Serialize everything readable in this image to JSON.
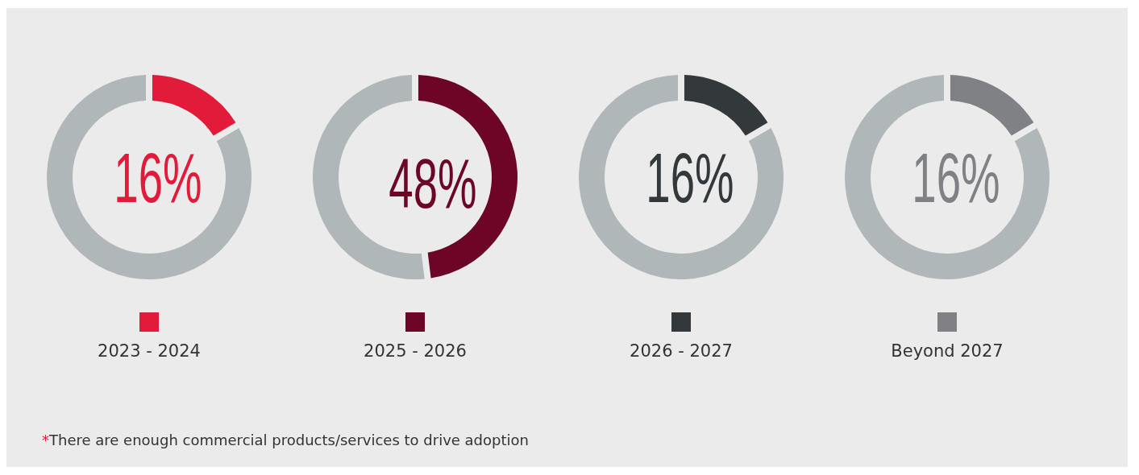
{
  "chart_data": [
    {
      "type": "donut",
      "categories": [
        "2023 - 2024",
        null
      ],
      "values": [
        16,
        84
      ],
      "colors": [
        "#e31b3a",
        "#b0b7b9"
      ],
      "value_labels": [
        "16%",
        null
      ],
      "legend": "bottom",
      "annotations": [
        "*There are enough commercial products/services to drive adoption"
      ]
    },
    {
      "type": "donut",
      "categories": [
        "2025 - 2026",
        null
      ],
      "values": [
        48,
        52
      ],
      "colors": [
        "#6d0626",
        "#b0b7b9"
      ],
      "value_labels": [
        "48%",
        null
      ],
      "legend": "bottom"
    },
    {
      "type": "donut",
      "categories": [
        "2026 - 2027",
        null
      ],
      "values": [
        16,
        84
      ],
      "colors": [
        "#33383a",
        "#b0b7b9"
      ],
      "value_labels": [
        "16%",
        null
      ],
      "legend": "bottom"
    },
    {
      "type": "donut",
      "categories": [
        "Beyond 2027",
        null
      ],
      "values": [
        16,
        84
      ],
      "colors": [
        "#7f8184",
        "#b0b7b9"
      ],
      "value_labels": [
        "16%",
        null
      ],
      "legend": "bottom"
    }
  ]
}
